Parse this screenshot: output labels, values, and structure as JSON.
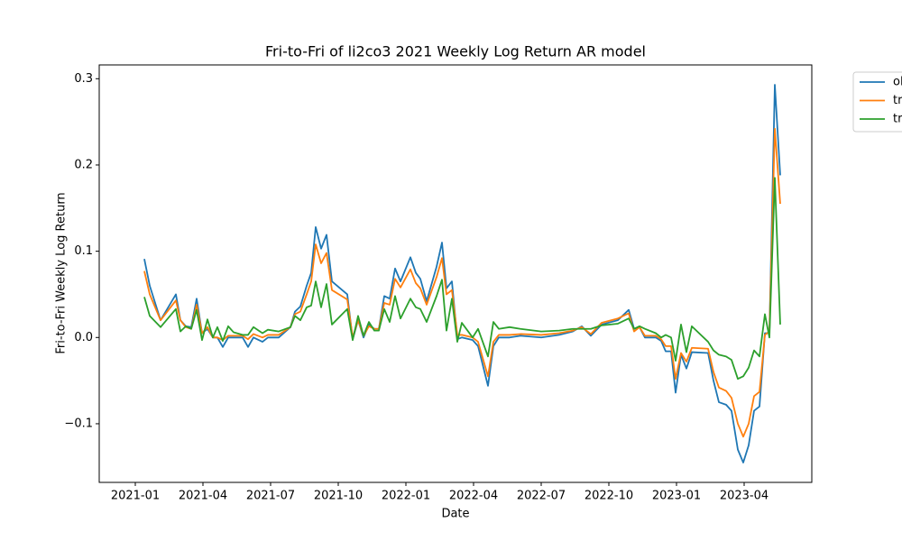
{
  "chart_data": {
    "type": "line",
    "title": "Fri-to-Fri of li2co3 2021 Weekly Log Return AR model",
    "x_label": "Date",
    "y_label": "Fri-to-Fri Weekly Log Return",
    "x": [
      0.4,
      0.64,
      1.12,
      1.8,
      2,
      2.24,
      2.48,
      2.72,
      2.96,
      3.2,
      3.44,
      3.64,
      3.88,
      4.12,
      4.36,
      4.76,
      5,
      5.24,
      5.64,
      5.88,
      6.36,
      6.88,
      7.08,
      7.32,
      7.6,
      7.8,
      8,
      8.24,
      8.48,
      8.72,
      9.4,
      9.64,
      9.88,
      10.12,
      10.36,
      10.6,
      10.8,
      11.04,
      11.28,
      11.52,
      11.76,
      12.2,
      12.44,
      12.64,
      12.92,
      13.36,
      13.6,
      13.8,
      14.04,
      14.28,
      14.48,
      14.96,
      15.2,
      15.64,
      15.88,
      16.12,
      16.6,
      17.08,
      18,
      18.8,
      19.4,
      19.8,
      20.2,
      20.68,
      21.4,
      21.88,
      22.12,
      22.36,
      22.6,
      23.08,
      23.32,
      23.52,
      23.76,
      23.96,
      24.2,
      24.44,
      24.68,
      25.4,
      25.64,
      25.88,
      26.2,
      26.44,
      26.72,
      26.96,
      27.2,
      27.44,
      27.68,
      27.92,
      28.12,
      28.36,
      28.6
    ],
    "series": [
      {
        "name": "ol",
        "color": "#1f77b4",
        "values": [
          0.091,
          0.06,
          0.02,
          0.05,
          0.02,
          0.013,
          0.012,
          0.045,
          0.005,
          0.01,
          0.0,
          0.0,
          -0.011,
          0.0,
          0.0,
          0.0,
          -0.011,
          0.0,
          -0.005,
          0.0,
          0.0,
          0.012,
          0.03,
          0.036,
          0.06,
          0.075,
          0.128,
          0.103,
          0.119,
          0.065,
          0.05,
          -0.002,
          0.02,
          0.0,
          0.015,
          0.01,
          0.01,
          0.048,
          0.045,
          0.08,
          0.065,
          0.093,
          0.075,
          0.068,
          0.042,
          0.082,
          0.11,
          0.057,
          0.065,
          -0.002,
          0.0,
          -0.003,
          -0.01,
          -0.056,
          -0.01,
          0.0,
          0.0,
          0.002,
          0.0,
          0.003,
          0.007,
          0.013,
          0.002,
          0.015,
          0.02,
          0.032,
          0.01,
          0.012,
          0.0,
          0.0,
          -0.004,
          -0.016,
          -0.016,
          -0.064,
          -0.02,
          -0.036,
          -0.017,
          -0.018,
          -0.05,
          -0.075,
          -0.078,
          -0.085,
          -0.13,
          -0.145,
          -0.125,
          -0.085,
          -0.08,
          0.005,
          0.005,
          0.293,
          0.188
        ]
      },
      {
        "name": "tr",
        "color": "#ff7f0e",
        "values": [
          0.077,
          0.05,
          0.02,
          0.043,
          0.02,
          0.012,
          0.01,
          0.038,
          0.005,
          0.012,
          0.0,
          0.0,
          -0.003,
          0.002,
          0.002,
          0.002,
          -0.002,
          0.004,
          0.0,
          0.003,
          0.003,
          0.012,
          0.027,
          0.03,
          0.05,
          0.065,
          0.108,
          0.086,
          0.098,
          0.055,
          0.044,
          0.0,
          0.02,
          0.002,
          0.013,
          0.01,
          0.01,
          0.04,
          0.038,
          0.068,
          0.058,
          0.079,
          0.063,
          0.057,
          0.038,
          0.07,
          0.092,
          0.05,
          0.055,
          0.003,
          0.003,
          0.0,
          -0.005,
          -0.045,
          -0.005,
          0.003,
          0.003,
          0.004,
          0.003,
          0.005,
          0.008,
          0.012,
          0.004,
          0.017,
          0.022,
          0.028,
          0.007,
          0.012,
          0.002,
          0.002,
          -0.002,
          -0.01,
          -0.01,
          -0.048,
          -0.018,
          -0.028,
          -0.012,
          -0.013,
          -0.04,
          -0.058,
          -0.062,
          -0.07,
          -0.1,
          -0.115,
          -0.1,
          -0.068,
          -0.063,
          0.003,
          0.007,
          0.242,
          0.155
        ]
      },
      {
        "name": "tr",
        "color": "#2ca02c",
        "values": [
          0.047,
          0.025,
          0.012,
          0.033,
          0.007,
          0.013,
          0.01,
          0.032,
          -0.003,
          0.021,
          0.0,
          0.012,
          -0.004,
          0.013,
          0.006,
          0.003,
          0.003,
          0.012,
          0.005,
          0.009,
          0.007,
          0.012,
          0.025,
          0.02,
          0.035,
          0.037,
          0.065,
          0.035,
          0.062,
          0.015,
          0.033,
          -0.003,
          0.025,
          0.002,
          0.018,
          0.008,
          0.008,
          0.033,
          0.018,
          0.048,
          0.022,
          0.045,
          0.035,
          0.033,
          0.018,
          0.048,
          0.067,
          0.008,
          0.045,
          -0.005,
          0.017,
          0.0,
          0.01,
          -0.022,
          0.018,
          0.01,
          0.012,
          0.01,
          0.007,
          0.008,
          0.01,
          0.01,
          0.01,
          0.014,
          0.016,
          0.022,
          0.01,
          0.013,
          0.01,
          0.005,
          0.0,
          0.003,
          0.0,
          -0.027,
          0.015,
          -0.017,
          0.013,
          -0.005,
          -0.015,
          -0.02,
          -0.022,
          -0.026,
          -0.048,
          -0.045,
          -0.035,
          -0.015,
          -0.022,
          0.027,
          0.0,
          0.185,
          0.015
        ]
      }
    ],
    "xlim": [
      -1.6,
      30
    ],
    "xticks": [
      {
        "value": 0,
        "label": "2021-01"
      },
      {
        "value": 3,
        "label": "2021-04"
      },
      {
        "value": 6,
        "label": "2021-07"
      },
      {
        "value": 9,
        "label": "2021-10"
      },
      {
        "value": 12,
        "label": "2022-01"
      },
      {
        "value": 15,
        "label": "2022-04"
      },
      {
        "value": 18,
        "label": "2022-07"
      },
      {
        "value": 21,
        "label": "2022-10"
      },
      {
        "value": 24,
        "label": "2023-01"
      },
      {
        "value": 27,
        "label": "2023-04"
      }
    ],
    "ylim": [
      -0.168,
      0.316
    ],
    "yticks": [
      {
        "value": -0.1,
        "label": "−0.1"
      },
      {
        "value": 0,
        "label": "0.0"
      },
      0.1,
      0.2,
      0.3
    ],
    "grid": false,
    "legend": "upper right outside"
  }
}
